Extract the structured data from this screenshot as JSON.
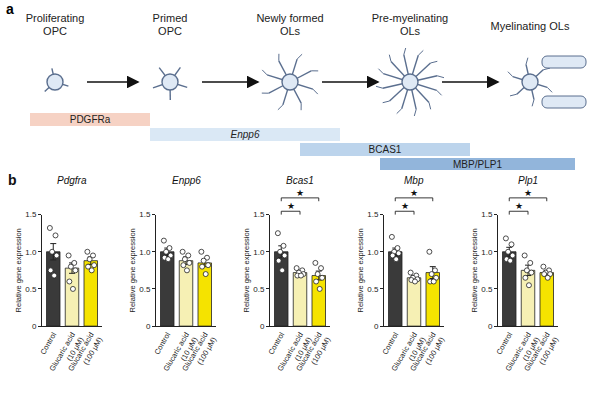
{
  "panel_labels": [
    "a",
    "b"
  ],
  "diagram": {
    "stages": [
      {
        "label_lines": [
          "Proliferating",
          "OPC"
        ]
      },
      {
        "label_lines": [
          "Primed",
          "OPC"
        ]
      },
      {
        "label_lines": [
          "Newly formed",
          "OLs"
        ]
      },
      {
        "label_lines": [
          "Pre-myelinating",
          "OLs"
        ]
      },
      {
        "label_lines": [
          "Myelinating OLs"
        ]
      }
    ],
    "markers": [
      {
        "label": "PDGFRa",
        "italic": false,
        "color": "#f6d2c4"
      },
      {
        "label": "Enpp6",
        "italic": true,
        "color": "#dae8f5"
      },
      {
        "label": "BCAS1",
        "italic": false,
        "color": "#bcd4ec"
      },
      {
        "label": "MBP/PLP1",
        "italic": false,
        "color": "#92b5db"
      }
    ]
  },
  "chart_data": [
    {
      "type": "bar",
      "title": "Pdgfra",
      "ylabel": "Relative gene expression",
      "categories": [
        "Control",
        "Glucaric acid (10 μM)",
        "Glucaric acid (100 μM)"
      ],
      "values": [
        1.0,
        0.78,
        0.88
      ],
      "errors": [
        0.11,
        0.07,
        0.05
      ],
      "points": [
        [
          1.32,
          1.22,
          1.0,
          0.95,
          0.75,
          0.68
        ],
        [
          0.95,
          0.85,
          0.8,
          0.75,
          0.6,
          0.5
        ],
        [
          1.0,
          0.95,
          0.9,
          0.82,
          0.8,
          0.75
        ]
      ],
      "colors": [
        "#3a3a3a",
        "#f6f0b4",
        "#f5e300"
      ],
      "ylim": [
        0,
        1.5
      ],
      "yticks": [
        0,
        0.5,
        {
          "value": 1,
          "label": "1.0"
        },
        1.5
      ]
    },
    {
      "type": "bar",
      "title": "Enpp6",
      "ylabel": "Relative gene expression",
      "categories": [
        "Control",
        "Glucaric acid (10 μM)",
        "Glucaric acid (100 μM)"
      ],
      "values": [
        1.0,
        0.88,
        0.85
      ],
      "errors": [
        0.05,
        0.05,
        0.05
      ],
      "points": [
        [
          1.15,
          1.05,
          1.0,
          0.95,
          0.92,
          0.9
        ],
        [
          1.0,
          0.95,
          0.9,
          0.85,
          0.82,
          0.75
        ],
        [
          1.0,
          0.92,
          0.88,
          0.82,
          0.8,
          0.7
        ]
      ],
      "colors": [
        "#3a3a3a",
        "#f6f0b4",
        "#f5e300"
      ],
      "ylim": [
        0,
        1.5
      ],
      "yticks": [
        0,
        0.5,
        {
          "value": 1,
          "label": "1.0"
        },
        1.5
      ]
    },
    {
      "type": "bar",
      "title": "Bcas1",
      "ylabel": "Relative gene expression",
      "categories": [
        "Control",
        "Glucaric acid (10 μM)",
        "Glucaric acid (100 μM)"
      ],
      "values": [
        1.0,
        0.72,
        0.68
      ],
      "errors": [
        0.08,
        0.03,
        0.06
      ],
      "points": [
        [
          1.25,
          1.08,
          1.0,
          0.95,
          0.88,
          0.75
        ],
        [
          0.78,
          0.75,
          0.72,
          0.7,
          0.68,
          0.68
        ],
        [
          0.85,
          0.78,
          0.7,
          0.65,
          0.6,
          0.5
        ]
      ],
      "colors": [
        "#3a3a3a",
        "#f6f0b4",
        "#f5e300"
      ],
      "ylim": [
        0,
        1.5
      ],
      "yticks": [
        0,
        0.5,
        {
          "value": 1,
          "label": "1.0"
        },
        1.5
      ],
      "significance": [
        {
          "from": 0,
          "to": 1,
          "label": "★"
        },
        {
          "from": 0,
          "to": 2,
          "label": "★"
        }
      ]
    },
    {
      "type": "bar",
      "title": "Mbp",
      "ylabel": "Relative gene expression",
      "categories": [
        "Control",
        "Glucaric acid (10 μM)",
        "Glucaric acid (100 μM)"
      ],
      "values": [
        1.0,
        0.65,
        0.72
      ],
      "errors": [
        0.05,
        0.03,
        0.08
      ],
      "points": [
        [
          1.2,
          1.05,
          1.0,
          0.98,
          0.95,
          0.9
        ],
        [
          0.72,
          0.68,
          0.65,
          0.63,
          0.62,
          0.6
        ],
        [
          1.0,
          0.75,
          0.7,
          0.65,
          0.6,
          0.6
        ]
      ],
      "colors": [
        "#3a3a3a",
        "#f6f0b4",
        "#f5e300"
      ],
      "ylim": [
        0,
        1.5
      ],
      "yticks": [
        0,
        0.5,
        {
          "value": 1,
          "label": "1.0"
        },
        1.5
      ],
      "significance": [
        {
          "from": 0,
          "to": 1,
          "label": "★"
        },
        {
          "from": 0,
          "to": 2,
          "label": "★"
        }
      ]
    },
    {
      "type": "bar",
      "title": "Plp1",
      "ylabel": "Relative gene expression",
      "categories": [
        "Control",
        "Glucaric acid (10 μM)",
        "Glucaric acid (100 μM)"
      ],
      "values": [
        1.0,
        0.75,
        0.72
      ],
      "errors": [
        0.06,
        0.07,
        0.03
      ],
      "points": [
        [
          1.18,
          1.1,
          1.0,
          0.95,
          0.9,
          0.88
        ],
        [
          0.95,
          0.85,
          0.75,
          0.72,
          0.65,
          0.55
        ],
        [
          0.8,
          0.75,
          0.72,
          0.7,
          0.7,
          0.65
        ]
      ],
      "colors": [
        "#3a3a3a",
        "#f6f0b4",
        "#f5e300"
      ],
      "ylim": [
        0,
        1.5
      ],
      "yticks": [
        0,
        0.5,
        {
          "value": 1,
          "label": "1.0"
        },
        1.5
      ],
      "significance": [
        {
          "from": 0,
          "to": 1,
          "label": "★"
        },
        {
          "from": 0,
          "to": 2,
          "label": "★"
        }
      ]
    }
  ]
}
